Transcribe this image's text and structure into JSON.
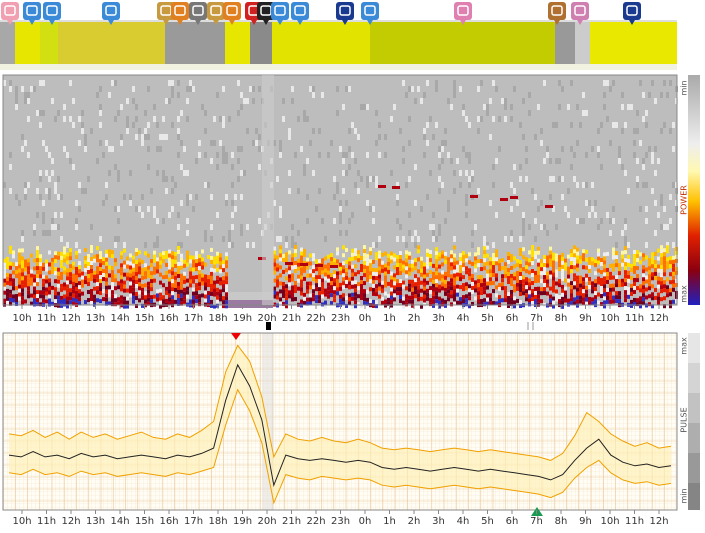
{
  "spectrogram": {
    "x_labels": [
      "10h",
      "11h",
      "12h",
      "13h",
      "14h",
      "15h",
      "16h",
      "17h",
      "18h",
      "19h",
      "20h",
      "21h",
      "22h",
      "23h",
      "0h",
      "1h",
      "2h",
      "3h",
      "4h",
      "5h",
      "6h",
      "7h",
      "8h",
      "9h",
      "10h",
      "11h",
      "12h"
    ],
    "colorbar": {
      "top": "min",
      "middle": "POWER",
      "bottom": "max"
    }
  },
  "pulse": {
    "x_labels": [
      "10h",
      "11h",
      "12h",
      "13h",
      "14h",
      "15h",
      "16h",
      "17h",
      "18h",
      "19h",
      "20h",
      "21h",
      "22h",
      "23h",
      "0h",
      "1h",
      "2h",
      "3h",
      "4h",
      "5h",
      "6h",
      "7h",
      "8h",
      "9h",
      "10h",
      "11h",
      "12h"
    ],
    "colorbar": {
      "top": "max",
      "middle": "PULSE",
      "bottom": "min"
    },
    "ylim": [
      0,
      100
    ],
    "mean": [
      31,
      30,
      33,
      30,
      31,
      29,
      32,
      30,
      31,
      29,
      30,
      31,
      30,
      29,
      31,
      30,
      32,
      35,
      62,
      82,
      70,
      51,
      14,
      31,
      29,
      28,
      29,
      28,
      27,
      28,
      27,
      24,
      23,
      24,
      23,
      22,
      23,
      24,
      23,
      22,
      23,
      22,
      21,
      20,
      19,
      17,
      20,
      28,
      35,
      40,
      31,
      27,
      25,
      26,
      24,
      25
    ],
    "upper": [
      43,
      42,
      45,
      41,
      44,
      40,
      44,
      41,
      43,
      40,
      42,
      44,
      41,
      40,
      43,
      41,
      45,
      50,
      78,
      93,
      84,
      64,
      30,
      43,
      40,
      39,
      41,
      39,
      38,
      40,
      38,
      35,
      34,
      35,
      34,
      33,
      34,
      35,
      34,
      33,
      34,
      33,
      32,
      31,
      30,
      28,
      32,
      42,
      55,
      50,
      43,
      39,
      36,
      38,
      35,
      36
    ],
    "lower": [
      21,
      20,
      23,
      20,
      21,
      19,
      22,
      20,
      21,
      19,
      20,
      21,
      20,
      19,
      21,
      20,
      22,
      24,
      48,
      68,
      56,
      38,
      4,
      20,
      18,
      17,
      19,
      18,
      17,
      18,
      17,
      14,
      13,
      14,
      13,
      12,
      13,
      14,
      13,
      12,
      13,
      12,
      11,
      10,
      9,
      7,
      10,
      18,
      24,
      28,
      21,
      17,
      15,
      16,
      14,
      15
    ]
  }
}
